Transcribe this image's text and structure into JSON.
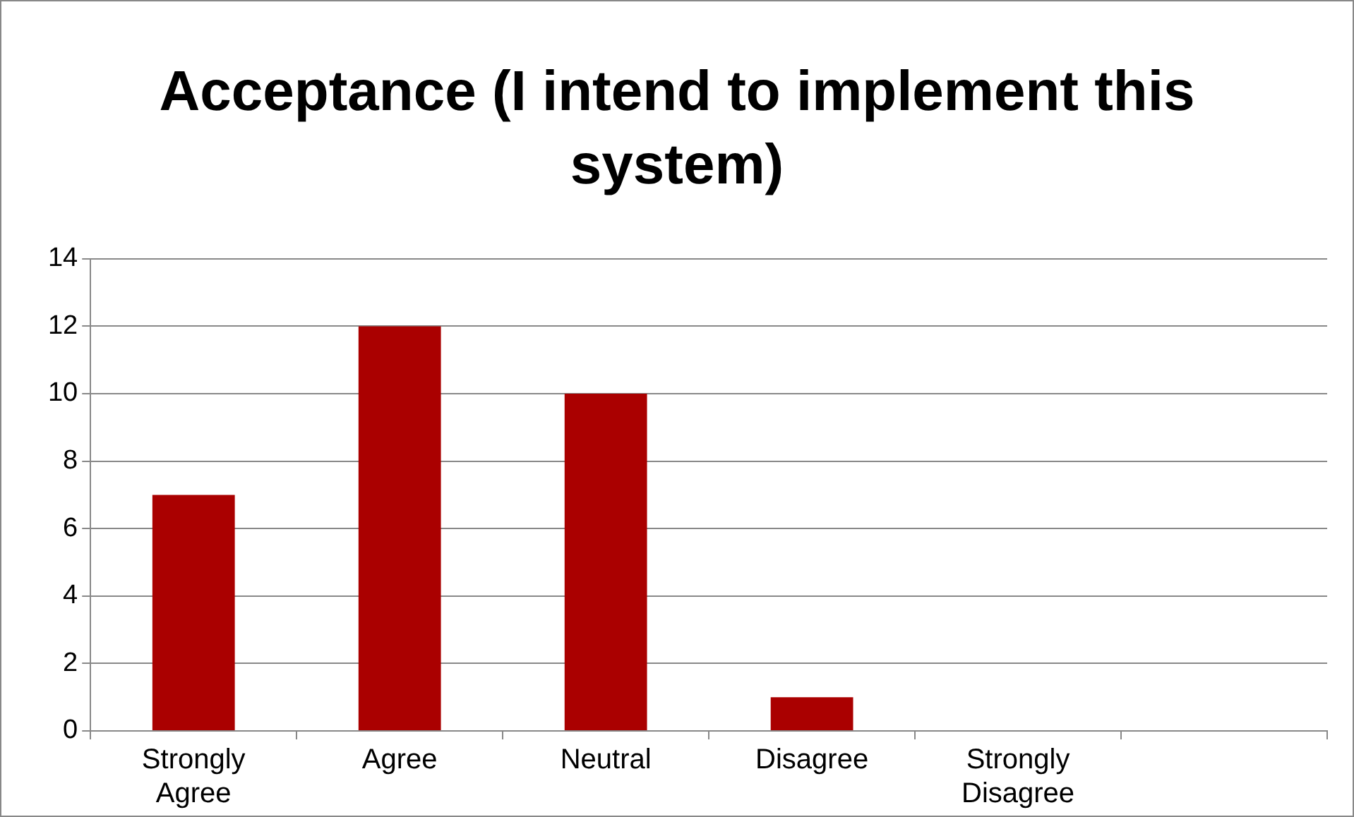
{
  "chart_data": {
    "type": "bar",
    "title": "Acceptance (I intend to implement this system)",
    "categories": [
      "Strongly Agree",
      "Agree",
      "Neutral",
      "Disagree",
      "Strongly Disagree",
      null
    ],
    "values": [
      7,
      12,
      10,
      1,
      0,
      null
    ],
    "color": "#aa0000",
    "ylim": [
      0,
      14
    ],
    "yticks": [
      0,
      2,
      4,
      6,
      8,
      10,
      12,
      14
    ],
    "grid": "y",
    "legend": false
  }
}
